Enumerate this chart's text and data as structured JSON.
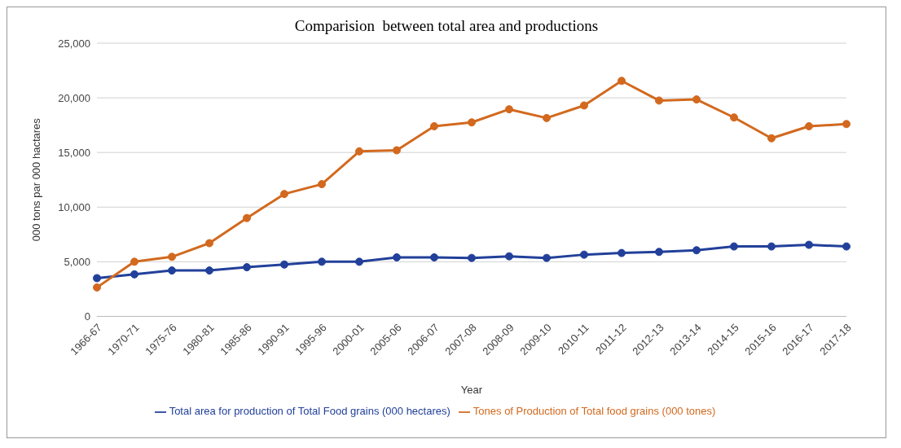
{
  "chart_data": {
    "type": "line",
    "title": "Comparision  between total area and productions",
    "xlabel": "Year",
    "ylabel": "000 tons par 000 hactares",
    "categories": [
      "1966-67",
      "1970-71",
      "1975-76",
      "1980-81",
      "1985-86",
      "1990-91",
      "1995-96",
      "2000-01",
      "2005-06",
      "2006-07",
      "2007-08",
      "2008-09",
      "2009-10",
      "2010-11",
      "2011-12",
      "2012-13",
      "2013-14",
      "2014-15",
      "2015-16",
      "2016-17",
      "2017-18"
    ],
    "series": [
      {
        "name": "Total area for production of Total Food grains (000 hectares)",
        "color": "#22409a",
        "values": [
          3500,
          3850,
          4200,
          4200,
          4500,
          4750,
          5000,
          5000,
          5400,
          5400,
          5350,
          5500,
          5350,
          5650,
          5800,
          5900,
          6050,
          6400,
          6400,
          6550,
          6400
        ]
      },
      {
        "name": "Tones of Production of Total food grains (000 tones)",
        "color": "#d2691e",
        "values": [
          2650,
          5000,
          5450,
          6700,
          9000,
          11200,
          12100,
          15100,
          15200,
          17400,
          17750,
          18950,
          18150,
          19300,
          21550,
          19750,
          19850,
          18200,
          16300,
          17400,
          17600
        ]
      }
    ],
    "ylim": [
      0,
      25000
    ],
    "yticks": [
      0,
      {
        "value": 5000,
        "label": "5,000"
      },
      {
        "value": 10000,
        "label": "10,000"
      },
      {
        "value": 15000,
        "label": "15,000"
      },
      {
        "value": 20000,
        "label": "20,000"
      },
      {
        "value": 25000,
        "label": "25,000"
      }
    ],
    "grid": "y",
    "legend": "bottom",
    "marker": "circle",
    "line_style": "solid"
  }
}
